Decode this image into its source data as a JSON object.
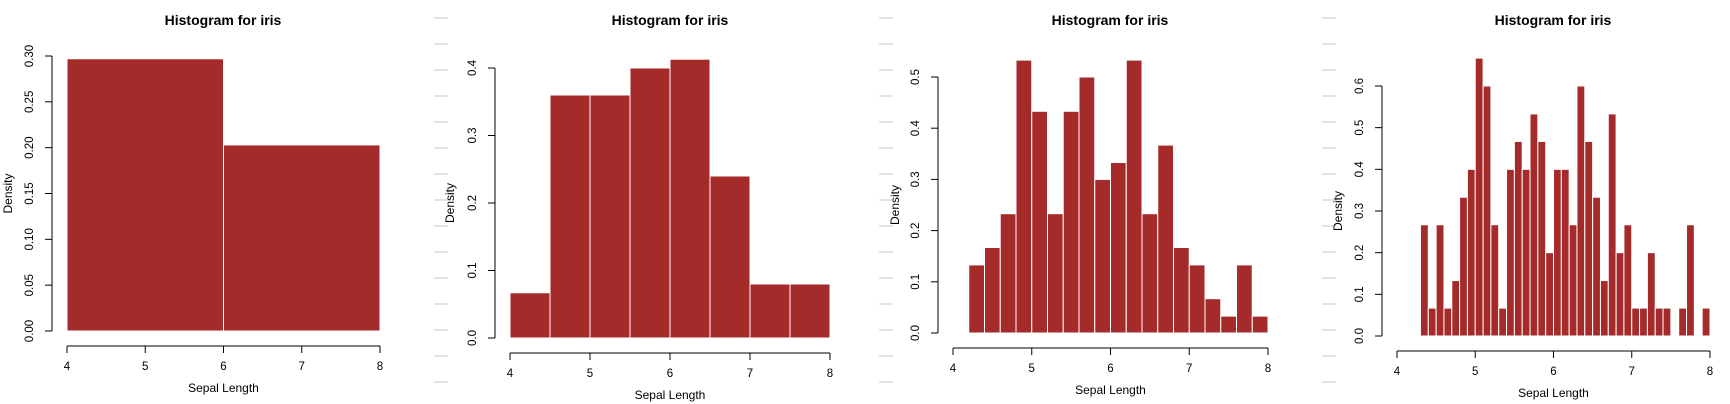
{
  "chart_data": [
    {
      "type": "bar",
      "title": "Histogram for iris",
      "xlabel": "Sepal Length",
      "ylabel": "Density",
      "bar_color": "#a52a2a",
      "bar_edge_color": "#ffffff",
      "xlim": [
        4,
        8
      ],
      "ylim": [
        0,
        0.3
      ],
      "xticks": [
        "4",
        "5",
        "6",
        "7",
        "8"
      ],
      "yticks": [
        "0.00",
        "0.05",
        "0.10",
        "0.15",
        "0.20",
        "0.25",
        "0.30"
      ],
      "bins": [
        {
          "x0": 4,
          "x1": 6,
          "density": 0.297
        },
        {
          "x0": 6,
          "x1": 8,
          "density": 0.203
        }
      ]
    },
    {
      "type": "bar",
      "title": "Histogram for iris",
      "xlabel": "Sepal Length",
      "ylabel": "Density",
      "bar_color": "#a52a2a",
      "bar_edge_color": "#ffffff",
      "xlim": [
        4,
        8
      ],
      "ylim": [
        0,
        0.4
      ],
      "xticks": [
        "4",
        "5",
        "6",
        "7",
        "8"
      ],
      "yticks": [
        "0.0",
        "0.1",
        "0.2",
        "0.3",
        "0.4"
      ],
      "bins": [
        {
          "x0": 4.0,
          "x1": 4.5,
          "density": 0.067
        },
        {
          "x0": 4.5,
          "x1": 5.0,
          "density": 0.36
        },
        {
          "x0": 5.0,
          "x1": 5.5,
          "density": 0.36
        },
        {
          "x0": 5.5,
          "x1": 6.0,
          "density": 0.4
        },
        {
          "x0": 6.0,
          "x1": 6.5,
          "density": 0.413
        },
        {
          "x0": 6.5,
          "x1": 7.0,
          "density": 0.24
        },
        {
          "x0": 7.0,
          "x1": 7.5,
          "density": 0.08
        },
        {
          "x0": 7.5,
          "x1": 8.0,
          "density": 0.08
        }
      ]
    },
    {
      "type": "bar",
      "title": "Histogram for iris",
      "xlabel": "Sepal Length",
      "ylabel": "Density",
      "bar_color": "#a52a2a",
      "bar_edge_color": "#ffffff",
      "xlim": [
        4,
        8
      ],
      "ylim": [
        0,
        0.5
      ],
      "xticks": [
        "4",
        "5",
        "6",
        "7",
        "8"
      ],
      "yticks": [
        "0.0",
        "0.1",
        "0.2",
        "0.3",
        "0.4",
        "0.5"
      ],
      "bins": [
        {
          "x0": 4.2,
          "x1": 4.4,
          "density": 0.133
        },
        {
          "x0": 4.4,
          "x1": 4.6,
          "density": 0.167
        },
        {
          "x0": 4.6,
          "x1": 4.8,
          "density": 0.233
        },
        {
          "x0": 4.8,
          "x1": 5.0,
          "density": 0.533
        },
        {
          "x0": 5.0,
          "x1": 5.2,
          "density": 0.433
        },
        {
          "x0": 5.2,
          "x1": 5.4,
          "density": 0.233
        },
        {
          "x0": 5.4,
          "x1": 5.6,
          "density": 0.433
        },
        {
          "x0": 5.6,
          "x1": 5.8,
          "density": 0.5
        },
        {
          "x0": 5.8,
          "x1": 6.0,
          "density": 0.3
        },
        {
          "x0": 6.0,
          "x1": 6.2,
          "density": 0.333
        },
        {
          "x0": 6.2,
          "x1": 6.4,
          "density": 0.533
        },
        {
          "x0": 6.4,
          "x1": 6.6,
          "density": 0.233
        },
        {
          "x0": 6.6,
          "x1": 6.8,
          "density": 0.367
        },
        {
          "x0": 6.8,
          "x1": 7.0,
          "density": 0.167
        },
        {
          "x0": 7.0,
          "x1": 7.2,
          "density": 0.133
        },
        {
          "x0": 7.2,
          "x1": 7.4,
          "density": 0.067
        },
        {
          "x0": 7.4,
          "x1": 7.6,
          "density": 0.033
        },
        {
          "x0": 7.6,
          "x1": 7.8,
          "density": 0.133
        },
        {
          "x0": 7.8,
          "x1": 8.0,
          "density": 0.033
        }
      ]
    },
    {
      "type": "bar",
      "title": "Histogram for iris",
      "xlabel": "Sepal Length",
      "ylabel": "Density",
      "bar_color": "#a52a2a",
      "bar_edge_color": "#ffffff",
      "xlim": [
        4,
        8
      ],
      "ylim": [
        0,
        0.6
      ],
      "xticks": [
        "4",
        "5",
        "6",
        "7",
        "8"
      ],
      "yticks": [
        "0.0",
        "0.1",
        "0.2",
        "0.3",
        "0.4",
        "0.5",
        "0.6"
      ],
      "bins": [
        {
          "x0": 4.3,
          "x1": 4.4,
          "density": 0.267
        },
        {
          "x0": 4.4,
          "x1": 4.5,
          "density": 0.067
        },
        {
          "x0": 4.5,
          "x1": 4.6,
          "density": 0.267
        },
        {
          "x0": 4.6,
          "x1": 4.7,
          "density": 0.067
        },
        {
          "x0": 4.7,
          "x1": 4.8,
          "density": 0.133
        },
        {
          "x0": 4.8,
          "x1": 4.9,
          "density": 0.333
        },
        {
          "x0": 4.9,
          "x1": 5.0,
          "density": 0.4
        },
        {
          "x0": 5.0,
          "x1": 5.1,
          "density": 0.667
        },
        {
          "x0": 5.1,
          "x1": 5.2,
          "density": 0.6
        },
        {
          "x0": 5.2,
          "x1": 5.3,
          "density": 0.267
        },
        {
          "x0": 5.3,
          "x1": 5.4,
          "density": 0.067
        },
        {
          "x0": 5.4,
          "x1": 5.5,
          "density": 0.4
        },
        {
          "x0": 5.5,
          "x1": 5.6,
          "density": 0.467
        },
        {
          "x0": 5.6,
          "x1": 5.7,
          "density": 0.4
        },
        {
          "x0": 5.7,
          "x1": 5.8,
          "density": 0.533
        },
        {
          "x0": 5.8,
          "x1": 5.9,
          "density": 0.467
        },
        {
          "x0": 5.9,
          "x1": 6.0,
          "density": 0.2
        },
        {
          "x0": 6.0,
          "x1": 6.1,
          "density": 0.4
        },
        {
          "x0": 6.1,
          "x1": 6.2,
          "density": 0.4
        },
        {
          "x0": 6.2,
          "x1": 6.3,
          "density": 0.267
        },
        {
          "x0": 6.3,
          "x1": 6.4,
          "density": 0.6
        },
        {
          "x0": 6.4,
          "x1": 6.5,
          "density": 0.467
        },
        {
          "x0": 6.5,
          "x1": 6.6,
          "density": 0.333
        },
        {
          "x0": 6.6,
          "x1": 6.7,
          "density": 0.133
        },
        {
          "x0": 6.7,
          "x1": 6.8,
          "density": 0.533
        },
        {
          "x0": 6.8,
          "x1": 6.9,
          "density": 0.2
        },
        {
          "x0": 6.9,
          "x1": 7.0,
          "density": 0.267
        },
        {
          "x0": 7.0,
          "x1": 7.1,
          "density": 0.067
        },
        {
          "x0": 7.1,
          "x1": 7.2,
          "density": 0.067
        },
        {
          "x0": 7.2,
          "x1": 7.3,
          "density": 0.2
        },
        {
          "x0": 7.3,
          "x1": 7.4,
          "density": 0.067
        },
        {
          "x0": 7.4,
          "x1": 7.5,
          "density": 0.067
        },
        {
          "x0": 7.6,
          "x1": 7.7,
          "density": 0.067
        },
        {
          "x0": 7.7,
          "x1": 7.8,
          "density": 0.267
        },
        {
          "x0": 7.9,
          "x1": 8.0,
          "density": 0.067
        }
      ]
    }
  ]
}
